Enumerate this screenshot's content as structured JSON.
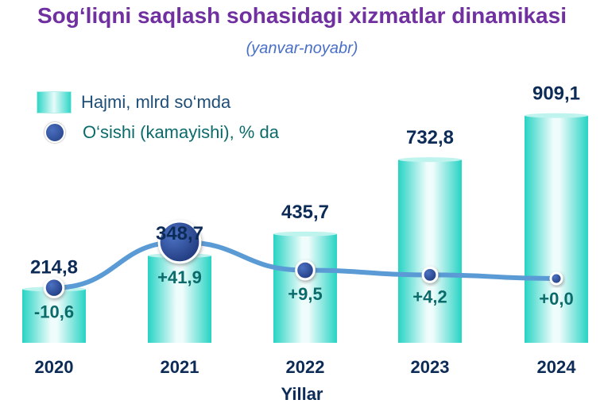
{
  "title": "Sog‘liqni saqlash sohasidagi xizmatlar dinamikasi",
  "subtitle": "(yanvar-noyabr)",
  "legend": {
    "bar_label": "Hajmi, mlrd so‘mda",
    "line_label": "O‘sishi (kamayishi), % da"
  },
  "chart_data": {
    "type": "bar",
    "title": "Sog‘liqni saqlash sohasidagi xizmatlar dinamikasi",
    "subtitle": "(yanvar-noyabr)",
    "xlabel": "Yillar",
    "categories": [
      "2020",
      "2021",
      "2022",
      "2023",
      "2024"
    ],
    "series": [
      {
        "name": "Hajmi, mlrd so‘mda",
        "type": "bar",
        "values": [
          214.8,
          348.7,
          435.7,
          732.8,
          909.1
        ],
        "labels": [
          "214,8",
          "348,7",
          "435,7",
          "732,8",
          "909,1"
        ]
      },
      {
        "name": "O‘sishi (kamayishi), % da",
        "type": "line",
        "values": [
          -10.6,
          41.9,
          9.5,
          4.2,
          0.0
        ],
        "labels": [
          "-10,6",
          "+41,9",
          "+9,5",
          "+4,2",
          "+0,0"
        ]
      }
    ],
    "legend_position": "top-left",
    "grid": false,
    "colors": {
      "bar": "#2fd6c8",
      "bar_highlight": "#e6fbf9",
      "line": "#5b9bd5",
      "marker": "#2f4f9a",
      "value_label": "#0d2b57",
      "growth_label": "#0b6b6b"
    }
  }
}
